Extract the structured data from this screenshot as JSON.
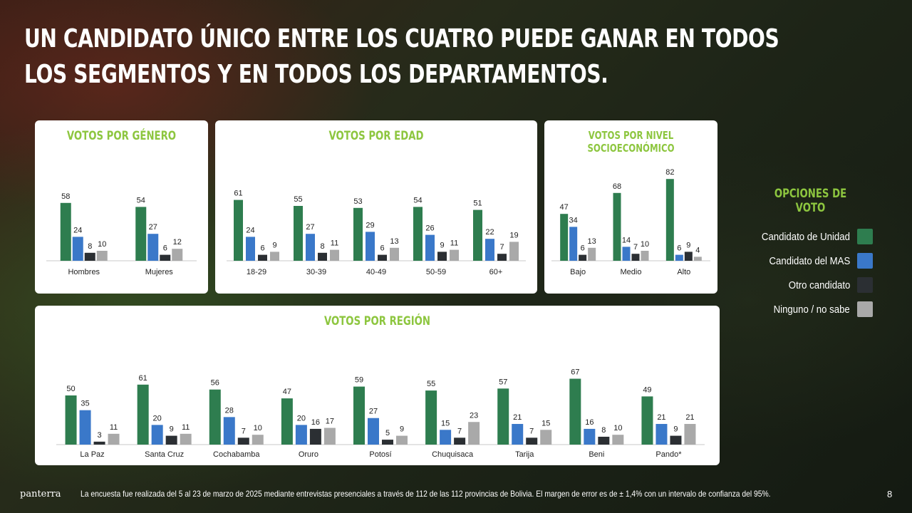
{
  "title_lines": [
    "UN CANDIDATO ÚNICO ENTRE LOS CUATRO PUEDE GANAR EN TODOS",
    "LOS SEGMENTOS Y EN TODOS LOS DEPARTAMENTOS."
  ],
  "legend": {
    "title": "OPCIONES DE VOTO",
    "items": [
      {
        "label": "Candidato de Unidad",
        "color": "#2e7d4f"
      },
      {
        "label": "Candidato del MAS",
        "color": "#3a78c9"
      },
      {
        "label": "Otro candidato",
        "color": "#2b2f33"
      },
      {
        "label": "Ninguno / no sabe",
        "color": "#a9a9a9"
      }
    ]
  },
  "footer": {
    "logo": "panterra",
    "note": "La encuesta fue realizada del 5 al 23 de marzo de 2025 mediante entrevistas presenciales a través de 112 de las 112 provincias de Bolivia. El margen de error es de ± 1,4% con un intervalo de confianza del 95%.",
    "page": "8"
  },
  "chart_data": [
    {
      "id": "genero",
      "type": "bar",
      "title": "VOTOS POR GÉNERO",
      "categories": [
        "Hombres",
        "Mujeres"
      ],
      "series": [
        {
          "name": "Candidato de Unidad",
          "values": [
            58,
            54
          ]
        },
        {
          "name": "Candidato del MAS",
          "values": [
            24,
            27
          ]
        },
        {
          "name": "Otro candidato",
          "values": [
            8,
            6
          ]
        },
        {
          "name": "Ninguno / no sabe",
          "values": [
            10,
            12
          ]
        }
      ]
    },
    {
      "id": "edad",
      "type": "bar",
      "title": "VOTOS POR EDAD",
      "categories": [
        "18-29",
        "30-39",
        "40-49",
        "50-59",
        "60+"
      ],
      "series": [
        {
          "name": "Candidato de Unidad",
          "values": [
            61,
            55,
            53,
            54,
            51
          ]
        },
        {
          "name": "Candidato del MAS",
          "values": [
            24,
            27,
            29,
            26,
            22
          ]
        },
        {
          "name": "Otro candidato",
          "values": [
            6,
            8,
            6,
            9,
            7
          ]
        },
        {
          "name": "Ninguno / no sabe",
          "values": [
            9,
            11,
            13,
            11,
            19
          ]
        }
      ]
    },
    {
      "id": "nse",
      "type": "bar",
      "title": "VOTOS POR NIVEL SOCIOECONÓMICO",
      "categories": [
        "Bajo",
        "Medio",
        "Alto"
      ],
      "series": [
        {
          "name": "Candidato de Unidad",
          "values": [
            47,
            68,
            82
          ]
        },
        {
          "name": "Candidato del MAS",
          "values": [
            34,
            14,
            6
          ]
        },
        {
          "name": "Otro candidato",
          "values": [
            6,
            7,
            9
          ]
        },
        {
          "name": "Ninguno / no sabe",
          "values": [
            13,
            10,
            4
          ]
        }
      ]
    },
    {
      "id": "region",
      "type": "bar",
      "title": "VOTOS POR REGIÓN",
      "categories": [
        "La Paz",
        "Santa Cruz",
        "Cochabamba",
        "Oruro",
        "Potosí",
        "Chuquisaca",
        "Tarija",
        "Beni",
        "Pando*"
      ],
      "series": [
        {
          "name": "Candidato de Unidad",
          "values": [
            50,
            61,
            56,
            47,
            59,
            55,
            57,
            67,
            49
          ]
        },
        {
          "name": "Candidato del MAS",
          "values": [
            35,
            20,
            28,
            20,
            27,
            15,
            21,
            16,
            21
          ]
        },
        {
          "name": "Otro candidato",
          "values": [
            3,
            9,
            7,
            16,
            5,
            7,
            7,
            8,
            9
          ]
        },
        {
          "name": "Ninguno / no sabe",
          "values": [
            11,
            11,
            10,
            17,
            9,
            23,
            15,
            10,
            21
          ]
        }
      ]
    }
  ]
}
